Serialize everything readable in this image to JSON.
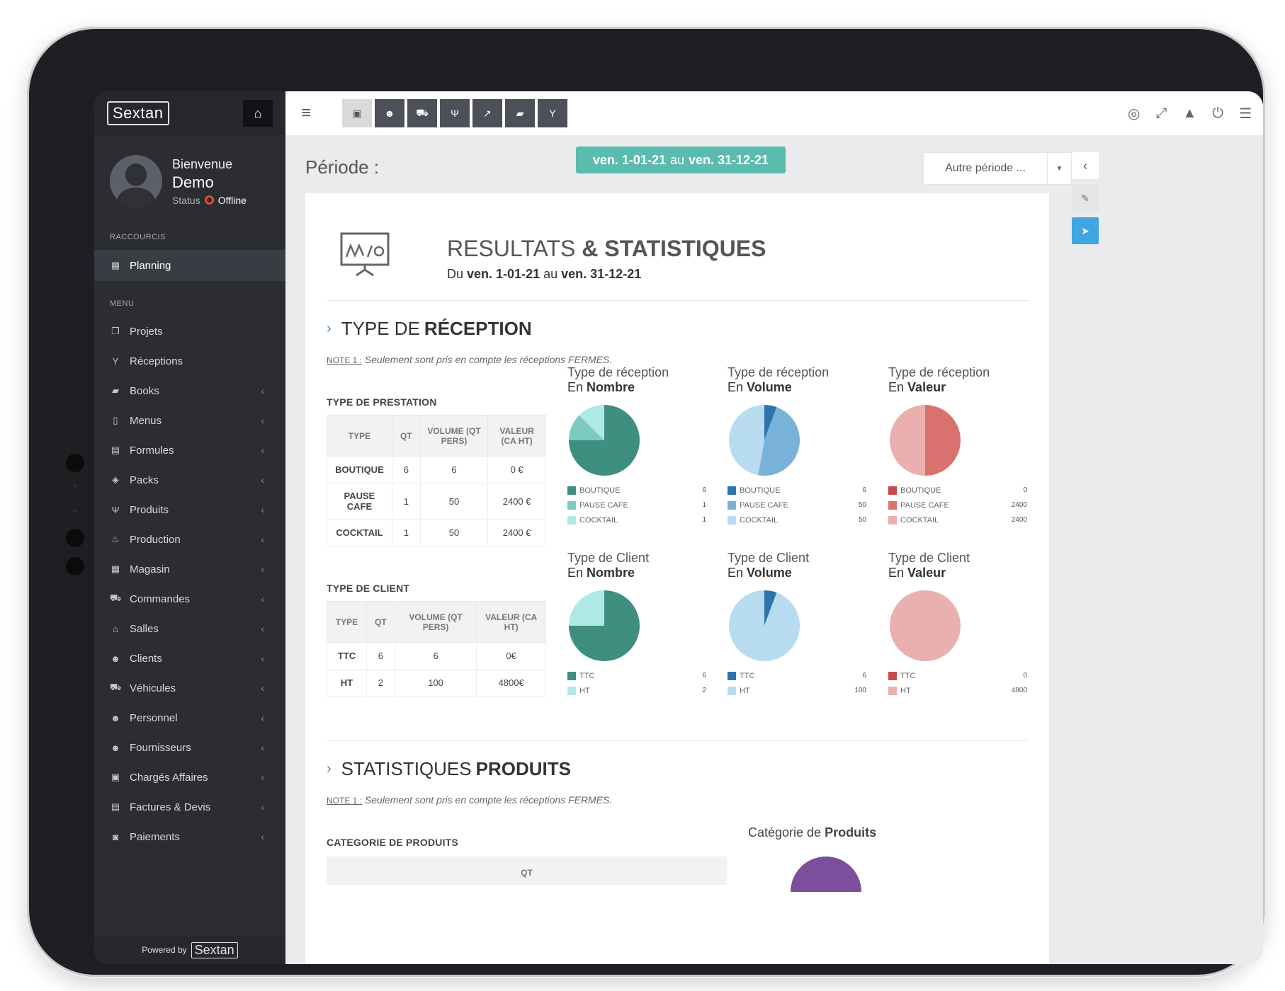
{
  "sidebar": {
    "brand": "Sextan",
    "welcome": "Bienvenue",
    "username": "Demo",
    "status_label": "Status",
    "status_value": "Offline",
    "shortcuts_title": "RACCOURCIS",
    "shortcut": {
      "label": "Planning",
      "icon": "calendar-icon"
    },
    "menu_title": "MENU",
    "items": [
      {
        "label": "Projets",
        "icon": "projects-icon",
        "chevron": false
      },
      {
        "label": "Réceptions",
        "icon": "glass-icon",
        "chevron": false
      },
      {
        "label": "Books",
        "icon": "book-icon",
        "chevron": true
      },
      {
        "label": "Menus",
        "icon": "open-book-icon",
        "chevron": true
      },
      {
        "label": "Formules",
        "icon": "clipboard-icon",
        "chevron": true
      },
      {
        "label": "Packs",
        "icon": "cubes-icon",
        "chevron": true
      },
      {
        "label": "Produits",
        "icon": "cutlery-icon",
        "chevron": true
      },
      {
        "label": "Production",
        "icon": "production-icon",
        "chevron": true
      },
      {
        "label": "Magasin",
        "icon": "store-icon",
        "chevron": true
      },
      {
        "label": "Commandes",
        "icon": "cart-icon",
        "chevron": true
      },
      {
        "label": "Salles",
        "icon": "home-icon",
        "chevron": true
      },
      {
        "label": "Clients",
        "icon": "users-icon",
        "chevron": true
      },
      {
        "label": "Véhicules",
        "icon": "truck-icon",
        "chevron": true
      },
      {
        "label": "Personnel",
        "icon": "users-icon",
        "chevron": true
      },
      {
        "label": "Fournisseurs",
        "icon": "users-icon",
        "chevron": true
      },
      {
        "label": "Chargés Affaires",
        "icon": "briefcase-icon",
        "chevron": true
      },
      {
        "label": "Factures & Devis",
        "icon": "invoice-icon",
        "chevron": true
      },
      {
        "label": "Paiements",
        "icon": "money-icon",
        "chevron": true
      }
    ],
    "powered_by": "Powered by",
    "powered_brand": "Sextan"
  },
  "topbar": {
    "buttons": [
      "briefcase-icon",
      "users-icon",
      "truck-icon",
      "cutlery-icon",
      "chart-icon",
      "book-icon",
      "glass-icon"
    ],
    "active_index": 0,
    "right_icons": [
      "help-icon",
      "expand-icon",
      "lock-icon",
      "power-icon",
      "user-list-icon"
    ]
  },
  "period": {
    "label": "Période :",
    "start": "ven. 1-01-21",
    "joiner": "au",
    "end": "ven. 31-12-21",
    "other_period": "Autre période ..."
  },
  "report": {
    "title_light": "RESULTATS",
    "title_bold": "& STATISTIQUES",
    "range_prefix": "Du",
    "range_start": "ven. 1-01-21",
    "range_joiner": "au",
    "range_end": "ven. 31-12-21"
  },
  "reception": {
    "title_light": "TYPE DE",
    "title_bold": "RÉCEPTION",
    "note_prefix": "NOTE 1 :",
    "note_text": "Seulement sont pris en compte les réceptions FERMES.",
    "prestation": {
      "title": "TYPE DE PRESTATION",
      "headers": [
        "TYPE",
        "QT",
        "VOLUME (QT PERS)",
        "VALEUR (CA HT)"
      ],
      "rows": [
        [
          "BOUTIQUE",
          "6",
          "6",
          "0 €"
        ],
        [
          "PAUSE CAFE",
          "1",
          "50",
          "2400 €"
        ],
        [
          "COCKTAIL",
          "1",
          "50",
          "2400 €"
        ]
      ]
    },
    "client": {
      "title": "TYPE DE CLIENT",
      "headers": [
        "TYPE",
        "QT",
        "VOLUME (QT PERS)",
        "VALEUR (CA HT)"
      ],
      "rows": [
        [
          "TTC",
          "6",
          "6",
          "0€"
        ],
        [
          "HT",
          "2",
          "100",
          "4800€"
        ]
      ]
    },
    "pies": [
      {
        "cap1": "Type de réception",
        "cap2_pre": "En",
        "cap2_bold": "Nombre",
        "labels": [
          "BOUTIQUE",
          "PAUSE CAFE",
          "COCKTAIL"
        ],
        "values": [
          6,
          1,
          1
        ],
        "colors": [
          "#3f8f80",
          "#7ccabf",
          "#aee9e3"
        ]
      },
      {
        "cap1": "Type de réception",
        "cap2_pre": "En",
        "cap2_bold": "Volume",
        "labels": [
          "BOUTIQUE",
          "PAUSE CAFE",
          "COCKTAIL"
        ],
        "values": [
          6,
          50,
          50
        ],
        "colors": [
          "#2d74ad",
          "#78b2d9",
          "#b7dcf0"
        ]
      },
      {
        "cap1": "Type de réception",
        "cap2_pre": "En",
        "cap2_bold": "Valeur",
        "labels": [
          "BOUTIQUE",
          "PAUSE CAFE",
          "COCKTAIL"
        ],
        "values": [
          0,
          2400,
          2400
        ],
        "colors": [
          "#c84b4b",
          "#d9726f",
          "#eab0b0"
        ]
      },
      {
        "cap1": "Type de Client",
        "cap2_pre": "En",
        "cap2_bold": "Nombre",
        "labels": [
          "TTC",
          "HT"
        ],
        "values": [
          6,
          2
        ],
        "colors": [
          "#3f8f80",
          "#aee9e3"
        ]
      },
      {
        "cap1": "Type de Client",
        "cap2_pre": "En",
        "cap2_bold": "Volume",
        "labels": [
          "TTC",
          "HT"
        ],
        "values": [
          6,
          100
        ],
        "colors": [
          "#2d74ad",
          "#b7dcf0"
        ]
      },
      {
        "cap1": "Type de Client",
        "cap2_pre": "En",
        "cap2_bold": "Valeur",
        "labels": [
          "TTC",
          "HT"
        ],
        "values": [
          0,
          4800
        ],
        "colors": [
          "#c84b4b",
          "#eab0b0"
        ]
      }
    ]
  },
  "products": {
    "title_light": "STATISTIQUES",
    "title_bold": "PRODUITS",
    "note_prefix": "NOTE 1 :",
    "note_text": "Seulement sont pris en compte les réceptions FERMES.",
    "category_title": "CATEGORIE DE PRODUITS",
    "table_header": "QT",
    "chart_cap_pre": "Catégorie de",
    "chart_cap_bold": "Produits"
  }
}
